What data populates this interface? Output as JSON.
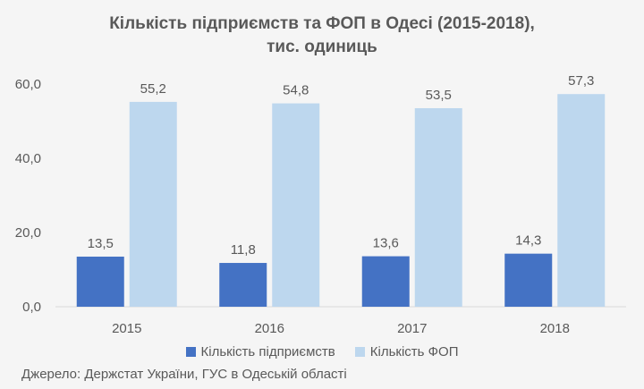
{
  "chart_data": {
    "type": "bar",
    "title_lines": [
      "Кількість підприємств та ФОП в Одесі (2015-2018),",
      "тис. одиниць"
    ],
    "categories": [
      "2015",
      "2016",
      "2017",
      "2018"
    ],
    "series": [
      {
        "name": "Кількість підприємств",
        "values": [
          13.5,
          11.8,
          13.6,
          14.3
        ],
        "labels": [
          "13,5",
          "11,8",
          "13,6",
          "14,3"
        ],
        "color": "#4472C4"
      },
      {
        "name": "Кількість ФОП",
        "values": [
          55.2,
          54.8,
          53.5,
          57.3
        ],
        "labels": [
          "55,2",
          "54,8",
          "53,5",
          "57,3"
        ],
        "color": "#BDD7EE"
      }
    ],
    "y_ticks": [
      0,
      20,
      40,
      60
    ],
    "y_tick_labels": [
      "0,0",
      "20,0",
      "40,0",
      "60,0"
    ],
    "ylim": [
      0,
      60
    ],
    "grid": false,
    "legend_position": "bottom"
  },
  "source_text": "Джерело: Держстат України, ГУС в Одеській області"
}
